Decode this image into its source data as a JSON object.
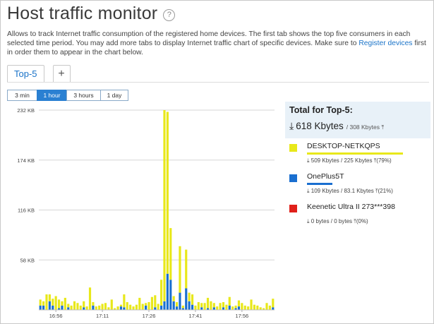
{
  "header": {
    "title": "Host traffic monitor",
    "help_icon": "?",
    "description_text": "Allows to track Internet traffic consumption of the registered home devices. The first tab shows the top five consumers in each selected time period. You may add more tabs to display Internet traffic chart of specific devices. Make sure to ",
    "description_link": "Register devices",
    "description_tail": " first in order them to appear in the chart below."
  },
  "tabs": [
    {
      "label": "Top-5",
      "active": true
    },
    {
      "label": "+",
      "active": false
    }
  ],
  "periods": [
    {
      "label": "3 min",
      "active": false
    },
    {
      "label": "1 hour",
      "active": true
    },
    {
      "label": "3 hours",
      "active": false
    },
    {
      "label": "1 day",
      "active": false
    }
  ],
  "chart_data": {
    "type": "bar",
    "stacked": true,
    "y_unit": "KB",
    "ylim": [
      0,
      232
    ],
    "y_ticks": [
      "232 KB",
      "174 KB",
      "116 KB",
      "58 KB"
    ],
    "y_tick_values": [
      232,
      174,
      116,
      58
    ],
    "x_tick_labels": [
      "16:56",
      "17:11",
      "17:26",
      "17:41",
      "17:56"
    ],
    "x_tick_positions": [
      5,
      20,
      35,
      50,
      65
    ],
    "grid": true,
    "series": [
      {
        "name": "OnePlus5T",
        "color": "#1a6fd0",
        "values": [
          5,
          5,
          0,
          10,
          5,
          0,
          2,
          5,
          0,
          3,
          0,
          0,
          0,
          0,
          3,
          0,
          0,
          5,
          0,
          0,
          0,
          0,
          0,
          0,
          0,
          0,
          4,
          3,
          0,
          0,
          0,
          0,
          0,
          0,
          5,
          0,
          0,
          3,
          0,
          5,
          10,
          42,
          35,
          10,
          4,
          20,
          2,
          25,
          10,
          6,
          0,
          0,
          3,
          0,
          2,
          0,
          3,
          0,
          0,
          3,
          0,
          5,
          0,
          2,
          4,
          0,
          0,
          0,
          0,
          0,
          0,
          0,
          0,
          0,
          0,
          3
        ]
      },
      {
        "name": "DESKTOP-NETKQPS",
        "color": "#e8e81a",
        "values": [
          7,
          5,
          18,
          8,
          8,
          16,
          10,
          5,
          14,
          4,
          5,
          10,
          8,
          5,
          7,
          4,
          26,
          4,
          4,
          5,
          7,
          8,
          3,
          12,
          2,
          4,
          2,
          15,
          9,
          6,
          4,
          6,
          14,
          7,
          3,
          9,
          15,
          14,
          7,
          30,
          222,
          188,
          60,
          6,
          5,
          54,
          3,
          45,
          10,
          12,
          5,
          9,
          5,
          8,
          12,
          10,
          5,
          4,
          8,
          6,
          6,
          10,
          4,
          3,
          7,
          8,
          5,
          4,
          12,
          6,
          5,
          3,
          2,
          8,
          5,
          10
        ]
      }
    ]
  },
  "summary": {
    "title": "Total for Top-5:",
    "total": "618 Kbytes",
    "total_upload": "/ 308 Kbytes",
    "download_icon": "arrow-down-icon",
    "upload_icon": "arrow-up-icon"
  },
  "devices": [
    {
      "name": "DESKTOP-NETKQPS",
      "color": "#e8e81a",
      "bar_fraction": 0.79,
      "stats": "509 Kbytes / 225 Kbytes",
      "share": "(79%)"
    },
    {
      "name": "OnePlus5T",
      "color": "#1a6fd0",
      "bar_fraction": 0.21,
      "stats": "109 Kbytes / 83.1 Kbytes",
      "share": "(21%)"
    },
    {
      "name": "Keenetic Ultra II 273***398",
      "color": "#e0201a",
      "bar_fraction": 0,
      "stats": "0 bytes / 0 bytes",
      "share": "(0%)"
    }
  ]
}
